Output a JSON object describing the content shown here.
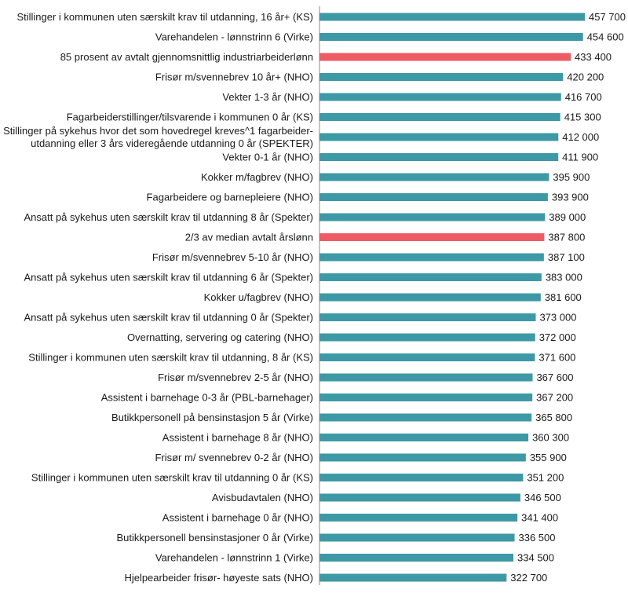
{
  "chart_data": {
    "type": "bar",
    "orientation": "horizontal",
    "categories": [
      "Stillinger i kommunen uten særskilt krav til utdanning, 16 år+ (KS)",
      "Varehandelen - lønnstrinn 6 (Virke)",
      "85 prosent av avtalt gjennomsnittlig industriarbeiderlønn",
      "Frisør m/svennebrev 10 år+ (NHO)",
      "Vekter 1-3 år (NHO)",
      "Fagarbeiderstillinger/tilsvarende i kommunen 0 år (KS)",
      "Stillinger på sykehus hvor det som hovedregel kreves^1 fagarbeider-\nutdanning eller 3 års videregående utdanning 0 år (SPEKTER)",
      "Vekter 0-1 år (NHO)",
      "Kokker m/fagbrev (NHO)",
      "Fagarbeidere og barnepleiere (NHO)",
      "Ansatt på sykehus uten særskilt krav til utdanning 8 år (Spekter)",
      "2/3 av median avtalt årslønn",
      "Frisør m/svennebrev 5-10 år (NHO)",
      "Ansatt på sykehus uten særskilt krav til utdanning 6 år (Spekter)",
      "Kokker u/fagbrev (NHO)",
      "Ansatt på sykehus uten særskilt krav til utdanning 0 år (Spekter)",
      "Overnatting, servering og catering (NHO)",
      "Stillinger i kommunen uten særskilt krav til utdanning, 8 år (KS)",
      "Frisør m/svennebrev 2-5 år (NHO)",
      "Assistent i barnehage 0-3 år (PBL-barnehager)",
      "Butikkpersonell på bensinstasjon 5 år (Virke)",
      "Assistent i barnehage  8 år (NHO)",
      "Frisør m/ svennebrev 0-2 år (NHO)",
      "Stillinger i kommunen uten særskilt krav til utdanning 0 år (KS)",
      "Avisbudavtalen (NHO)",
      "Assistent i barnehage  0 år (NHO)",
      "Butikkpersonell bensinstasjoner 0 år (Virke)",
      "Varehandelen - lønnstrinn 1 (Virke)",
      "Hjelpearbeider frisør- høyeste sats (NHO)"
    ],
    "values": [
      457700,
      454600,
      433400,
      420200,
      416700,
      415300,
      412000,
      411900,
      395900,
      393900,
      389000,
      387800,
      387100,
      383000,
      381600,
      373000,
      372000,
      371600,
      367600,
      367200,
      365800,
      360300,
      355900,
      351200,
      346500,
      341400,
      336500,
      334500,
      322700
    ],
    "value_labels": [
      "457 700",
      "454 600",
      "433 400",
      "420 200",
      "416 700",
      "415 300",
      "412 000",
      "411 900",
      "395 900",
      "393 900",
      "389 000",
      "387 800",
      "387 100",
      "383 000",
      "381 600",
      "373 000",
      "372 000",
      "371 600",
      "367 600",
      "367 200",
      "365 800",
      "360 300",
      "355 900",
      "351 200",
      "346 500",
      "341 400",
      "336 500",
      "334 500",
      "322 700"
    ],
    "highlighted": [
      false,
      false,
      true,
      false,
      false,
      false,
      false,
      false,
      false,
      false,
      false,
      true,
      false,
      false,
      false,
      false,
      false,
      false,
      false,
      false,
      false,
      false,
      false,
      false,
      false,
      false,
      false,
      false,
      false
    ],
    "colors": {
      "bar": "#3d99a6",
      "highlight": "#ef5b64",
      "axis": "#888888"
    },
    "xlim": [
      0,
      457700
    ],
    "grid": false,
    "legend": "none",
    "title": "",
    "xlabel": "",
    "ylabel": ""
  }
}
